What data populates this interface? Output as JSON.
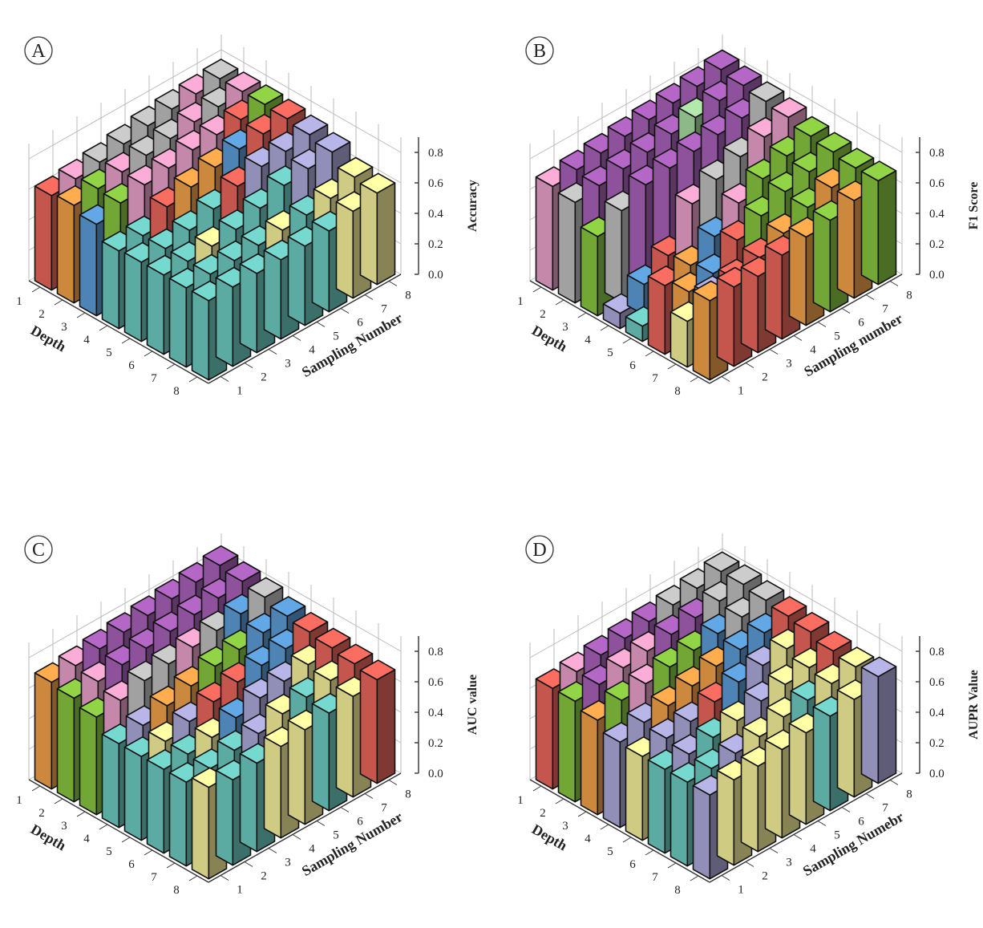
{
  "figure": {
    "panels": [
      {
        "letter": "A",
        "zlabel": "Accuracy",
        "xlabel": "Depth",
        "ylabel": "Sampling Number"
      },
      {
        "letter": "B",
        "zlabel": "F1 Score",
        "xlabel": "Depth",
        "ylabel": "Sampling number"
      },
      {
        "letter": "C",
        "zlabel": "AUC value",
        "xlabel": "Depth",
        "ylabel": "Sampling Number"
      },
      {
        "letter": "D",
        "zlabel": "AUPR Value",
        "xlabel": "Depth",
        "ylabel": "Sampling Numebr"
      }
    ]
  },
  "chart_data": [
    {
      "type": "bar3d",
      "panel": "A",
      "zlabel": "Accuracy",
      "xlabel": "Depth",
      "ylabel": "Sampling Number",
      "x_ticks": [
        "1",
        "2",
        "3",
        "4",
        "5",
        "6",
        "7",
        "8"
      ],
      "y_ticks": [
        "1",
        "2",
        "3",
        "4",
        "5",
        "6",
        "7",
        "8"
      ],
      "z_ticks": [
        "0.0",
        "0.2",
        "0.4",
        "0.6",
        "0.8"
      ],
      "zlim": [
        0,
        0.9
      ],
      "values": [
        [
          0.62,
          0.64,
          0.66,
          0.69,
          0.72,
          0.74,
          0.75,
          0.76
        ],
        [
          0.64,
          0.66,
          0.68,
          0.7,
          0.72,
          0.74,
          0.75,
          0.76
        ],
        [
          0.6,
          0.65,
          0.68,
          0.7,
          0.73,
          0.74,
          0.75,
          0.76
        ],
        [
          0.51,
          0.52,
          0.62,
          0.66,
          0.7,
          0.73,
          0.74,
          0.75
        ],
        [
          0.52,
          0.52,
          0.55,
          0.6,
          0.66,
          0.7,
          0.71,
          0.73
        ],
        [
          0.52,
          0.52,
          0.53,
          0.55,
          0.6,
          0.66,
          0.68,
          0.7
        ],
        [
          0.52,
          0.52,
          0.52,
          0.53,
          0.54,
          0.55,
          0.57,
          0.62
        ],
        [
          0.52,
          0.52,
          0.52,
          0.52,
          0.52,
          0.53,
          0.57,
          0.6
        ]
      ],
      "colors": [
        [
          "#e8655a",
          "#e8a0c8",
          "#bdbdbd",
          "#bdbdbd",
          "#bdbdbd",
          "#bdbdbd",
          "#e8a0c8",
          "#bdbdbd"
        ],
        [
          "#f0a048",
          "#86c440",
          "#e8a0c8",
          "#bdbdbd",
          "#bdbdbd",
          "#e8a0c8",
          "#bdbdbd",
          "#e8a0c8"
        ],
        [
          "#5b9bd5",
          "#86c440",
          "#e8a0c8",
          "#e8a0c8",
          "#e8a0c8",
          "#e8a0c8",
          "#e8655a",
          "#86c440"
        ],
        [
          "#6cc9c0",
          "#6cc9c0",
          "#e8655a",
          "#f0a048",
          "#f0a048",
          "#5b9bd5",
          "#e8655a",
          "#e8655a"
        ],
        [
          "#6cc9c0",
          "#6cc9c0",
          "#6cc9c0",
          "#6cc9c0",
          "#e8655a",
          "#aaa8d8",
          "#aaa8d8",
          "#aaa8d8"
        ],
        [
          "#6cc9c0",
          "#6cc9c0",
          "#f5ef9a",
          "#6cc9c0",
          "#6cc9c0",
          "#6cc9c0",
          "#aaa8d8",
          "#aaa8d8"
        ],
        [
          "#6cc9c0",
          "#6cc9c0",
          "#6cc9c0",
          "#6cc9c0",
          "#f5ef9a",
          "#6cc9c0",
          "#f5ef9a",
          "#f5ef9a"
        ],
        [
          "#6cc9c0",
          "#6cc9c0",
          "#6cc9c0",
          "#6cc9c0",
          "#6cc9c0",
          "#6cc9c0",
          "#f5ef9a",
          "#f5ef9a"
        ]
      ]
    },
    {
      "type": "bar3d",
      "panel": "B",
      "zlabel": "F1 Score",
      "xlabel": "Depth",
      "ylabel": "Sampling number",
      "x_ticks": [
        "1",
        "2",
        "3",
        "4",
        "5",
        "6",
        "7",
        "8"
      ],
      "y_ticks": [
        "1",
        "2",
        "3",
        "4",
        "5",
        "6",
        "7",
        "8"
      ],
      "z_ticks": [
        "0.0",
        "0.2",
        "0.4",
        "0.6",
        "0.8"
      ],
      "zlim": [
        0,
        0.9
      ],
      "values": [
        [
          0.68,
          0.7,
          0.72,
          0.74,
          0.76,
          0.78,
          0.8,
          0.82
        ],
        [
          0.66,
          0.68,
          0.7,
          0.72,
          0.75,
          0.77,
          0.79,
          0.8
        ],
        [
          0.52,
          0.6,
          0.68,
          0.7,
          0.72,
          0.74,
          0.76,
          0.78
        ],
        [
          0.1,
          0.2,
          0.3,
          0.55,
          0.62,
          0.68,
          0.72,
          0.76
        ],
        [
          0.1,
          0.18,
          0.32,
          0.42,
          0.55,
          0.62,
          0.68,
          0.72
        ],
        [
          0.45,
          0.32,
          0.35,
          0.48,
          0.55,
          0.62,
          0.66,
          0.7
        ],
        [
          0.3,
          0.38,
          0.4,
          0.45,
          0.52,
          0.6,
          0.64,
          0.68
        ],
        [
          0.52,
          0.52,
          0.5,
          0.55,
          0.58,
          0.6,
          0.64,
          0.68
        ]
      ],
      "colors": [
        [
          "#e8a0c8",
          "#a75fb8",
          "#a75fb8",
          "#a75fb8",
          "#a75fb8",
          "#a75fb8",
          "#a75fb8",
          "#a75fb8"
        ],
        [
          "#bdbdbd",
          "#a75fb8",
          "#a75fb8",
          "#a75fb8",
          "#a75fb8",
          "#a6d8a0",
          "#a75fb8",
          "#a75fb8"
        ],
        [
          "#86c440",
          "#bdbdbd",
          "#a75fb8",
          "#a75fb8",
          "#a75fb8",
          "#a75fb8",
          "#a75fb8",
          "#bdbdbd"
        ],
        [
          "#aaa8d8",
          "#5b9bd5",
          "#e8655a",
          "#e8a0c8",
          "#bdbdbd",
          "#bdbdbd",
          "#e8a0c8",
          "#e8a0c8"
        ],
        [
          "#6cc9c0",
          "#e8655a",
          "#f0a048",
          "#5b9bd5",
          "#e8a0c8",
          "#86c440",
          "#86c440",
          "#86c440"
        ],
        [
          "#e8655a",
          "#f0a048",
          "#5b9bd5",
          "#e8655a",
          "#86c440",
          "#86c440",
          "#86c440",
          "#86c440"
        ],
        [
          "#f5ef9a",
          "#aaa8d8",
          "#e8655a",
          "#e8655a",
          "#f0a048",
          "#86c440",
          "#f0a048",
          "#86c440"
        ],
        [
          "#f0a048",
          "#e8655a",
          "#e8655a",
          "#e8655a",
          "#f0a048",
          "#86c440",
          "#f0a048",
          "#86c440"
        ]
      ]
    },
    {
      "type": "bar3d",
      "panel": "C",
      "zlabel": "AUC value",
      "xlabel": "Depth",
      "ylabel": "Sampling Number",
      "x_ticks": [
        "1",
        "2",
        "3",
        "4",
        "5",
        "6",
        "7",
        "8"
      ],
      "y_ticks": [
        "1",
        "2",
        "3",
        "4",
        "5",
        "6",
        "7",
        "8"
      ],
      "z_ticks": [
        "0.0",
        "0.2",
        "0.4",
        "0.6",
        "0.8"
      ],
      "zlim": [
        0,
        0.9
      ],
      "values": [
        [
          0.7,
          0.72,
          0.74,
          0.76,
          0.78,
          0.8,
          0.82,
          0.84
        ],
        [
          0.68,
          0.7,
          0.72,
          0.74,
          0.76,
          0.78,
          0.8,
          0.82
        ],
        [
          0.64,
          0.66,
          0.7,
          0.72,
          0.74,
          0.76,
          0.78,
          0.8
        ],
        [
          0.55,
          0.58,
          0.62,
          0.66,
          0.7,
          0.72,
          0.74,
          0.76
        ],
        [
          0.55,
          0.56,
          0.6,
          0.64,
          0.68,
          0.7,
          0.72,
          0.74
        ],
        [
          0.55,
          0.56,
          0.58,
          0.62,
          0.66,
          0.68,
          0.7,
          0.72
        ],
        [
          0.55,
          0.55,
          0.58,
          0.6,
          0.64,
          0.66,
          0.68,
          0.7
        ],
        [
          0.6,
          0.56,
          0.58,
          0.6,
          0.62,
          0.64,
          0.66,
          0.68
        ]
      ],
      "colors": [
        [
          "#f0a048",
          "#e8a0c8",
          "#a75fb8",
          "#a75fb8",
          "#a75fb8",
          "#a75fb8",
          "#a75fb8",
          "#a75fb8"
        ],
        [
          "#86c440",
          "#e8a0c8",
          "#a75fb8",
          "#a75fb8",
          "#a75fb8",
          "#a75fb8",
          "#a75fb8",
          "#a75fb8"
        ],
        [
          "#86c440",
          "#e8a0c8",
          "#bdbdbd",
          "#bdbdbd",
          "#e8a0c8",
          "#bdbdbd",
          "#5b9bd5",
          "#bdbdbd"
        ],
        [
          "#6cc9c0",
          "#aaa8d8",
          "#f0a048",
          "#f0a048",
          "#86c440",
          "#86c440",
          "#5b9bd5",
          "#5b9bd5"
        ],
        [
          "#6cc9c0",
          "#f5ef9a",
          "#aaa8d8",
          "#e8655a",
          "#e8655a",
          "#5b9bd5",
          "#5b9bd5",
          "#e8655a"
        ],
        [
          "#6cc9c0",
          "#6cc9c0",
          "#f5ef9a",
          "#5b9bd5",
          "#aaa8d8",
          "#aaa8d8",
          "#f5ef9a",
          "#e8655a"
        ],
        [
          "#6cc9c0",
          "#6cc9c0",
          "#6cc9c0",
          "#aaa8d8",
          "#f5ef9a",
          "#6cc9c0",
          "#f5ef9a",
          "#e8655a"
        ],
        [
          "#f5ef9a",
          "#6cc9c0",
          "#6cc9c0",
          "#f5ef9a",
          "#f5ef9a",
          "#6cc9c0",
          "#f5ef9a",
          "#e8655a"
        ]
      ]
    },
    {
      "type": "bar3d",
      "panel": "D",
      "zlabel": "AUPR Value",
      "xlabel": "Depth",
      "ylabel": "Sampling Numebr",
      "x_ticks": [
        "1",
        "2",
        "3",
        "4",
        "5",
        "6",
        "7",
        "8"
      ],
      "y_ticks": [
        "1",
        "2",
        "3",
        "4",
        "5",
        "6",
        "7",
        "8"
      ],
      "z_ticks": [
        "0.0",
        "0.2",
        "0.4",
        "0.6",
        "0.8"
      ],
      "zlim": [
        0,
        0.9
      ],
      "values": [
        [
          0.66,
          0.68,
          0.7,
          0.72,
          0.74,
          0.76,
          0.78,
          0.8
        ],
        [
          0.66,
          0.68,
          0.7,
          0.72,
          0.74,
          0.76,
          0.78,
          0.8
        ],
        [
          0.62,
          0.66,
          0.68,
          0.7,
          0.72,
          0.74,
          0.76,
          0.78
        ],
        [
          0.56,
          0.6,
          0.62,
          0.66,
          0.7,
          0.72,
          0.74,
          0.76
        ],
        [
          0.55,
          0.58,
          0.6,
          0.64,
          0.68,
          0.7,
          0.72,
          0.74
        ],
        [
          0.55,
          0.56,
          0.58,
          0.6,
          0.64,
          0.66,
          0.68,
          0.7
        ],
        [
          0.55,
          0.55,
          0.56,
          0.58,
          0.62,
          0.64,
          0.66,
          0.68
        ],
        [
          0.55,
          0.56,
          0.56,
          0.58,
          0.6,
          0.62,
          0.64,
          0.7
        ]
      ],
      "colors": [
        [
          "#e8655a",
          "#e8a0c8",
          "#a75fb8",
          "#a75fb8",
          "#a75fb8",
          "#bdbdbd",
          "#bdbdbd",
          "#bdbdbd"
        ],
        [
          "#86c440",
          "#a75fb8",
          "#e8a0c8",
          "#e8a0c8",
          "#a75fb8",
          "#a75fb8",
          "#bdbdbd",
          "#bdbdbd"
        ],
        [
          "#f0a048",
          "#86c440",
          "#e8a0c8",
          "#86c440",
          "#86c440",
          "#5b9bd5",
          "#bdbdbd",
          "#bdbdbd"
        ],
        [
          "#aaa8d8",
          "#aaa8d8",
          "#f0a048",
          "#f0a048",
          "#f0a048",
          "#5b9bd5",
          "#5b9bd5",
          "#e8655a"
        ],
        [
          "#f5ef9a",
          "#aaa8d8",
          "#aaa8d8",
          "#e8655a",
          "#5b9bd5",
          "#aaa8d8",
          "#f5ef9a",
          "#e8655a"
        ],
        [
          "#6cc9c0",
          "#aaa8d8",
          "#6cc9c0",
          "#f5ef9a",
          "#aaa8d8",
          "#f5ef9a",
          "#f5ef9a",
          "#e8655a"
        ],
        [
          "#6cc9c0",
          "#6cc9c0",
          "#aaa8d8",
          "#f5ef9a",
          "#f5ef9a",
          "#6cc9c0",
          "#f5ef9a",
          "#f5ef9a"
        ],
        [
          "#aaa8d8",
          "#f5ef9a",
          "#f5ef9a",
          "#f5ef9a",
          "#f5ef9a",
          "#6cc9c0",
          "#f5ef9a",
          "#aaa8d8"
        ]
      ]
    }
  ]
}
